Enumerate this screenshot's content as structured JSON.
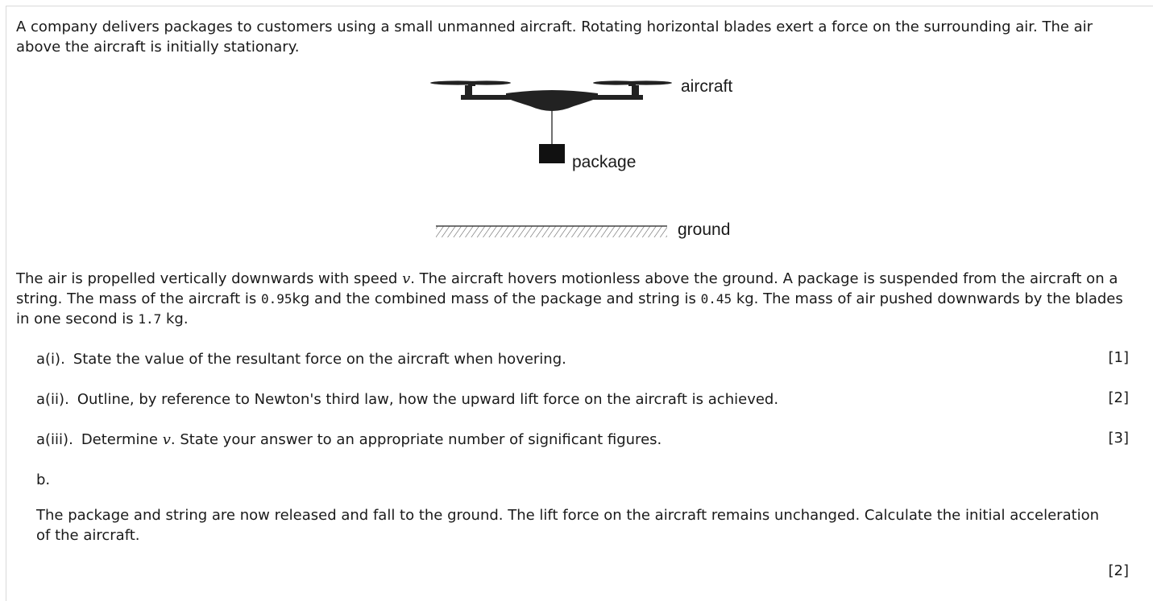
{
  "intro": {
    "line1": "A company delivers packages to customers using a small unmanned aircraft. Rotating horizontal blades exert a force on the surrounding air. The air",
    "line2": "above the aircraft is initially stationary."
  },
  "diagram": {
    "label_aircraft": "aircraft",
    "label_package": "package",
    "label_ground": "ground"
  },
  "stem": {
    "l1_a": "The air is propelled vertically downwards with speed ",
    "var_v": "v",
    "l1_b": ". The aircraft hovers motionless above the ground. A package is suspended from the aircraft on a",
    "l2_a": "string. The mass of the aircraft is ",
    "mass_aircraft": "0.95",
    "l2_b": "kg and the combined mass of the package and string is ",
    "mass_package": "0.45",
    "l2_c": " kg. The mass of air pushed downwards by the blades",
    "l3_a": "in one second is ",
    "mass_air": "1.7",
    "l3_b": " kg."
  },
  "questions": [
    {
      "num": "a(i).",
      "text_a": "State the value of the resultant force on the aircraft when hovering.",
      "marks": "[1]"
    },
    {
      "num": "a(ii).",
      "text_a": "Outline, by reference to Newton's third law, how the upward lift force on the aircraft is achieved.",
      "marks": "[2]"
    },
    {
      "num": "a(iii).",
      "text_a": "Determine ",
      "var": "v",
      "text_b": ". State your answer to an appropriate number of significant figures.",
      "marks": "[3]"
    }
  ],
  "part_b": {
    "num": "b.",
    "line1": "The package and string are now released and fall to the ground. The lift force on the aircraft remains unchanged. Calculate the initial acceleration",
    "line2": "of the aircraft.",
    "marks": "[2]"
  }
}
